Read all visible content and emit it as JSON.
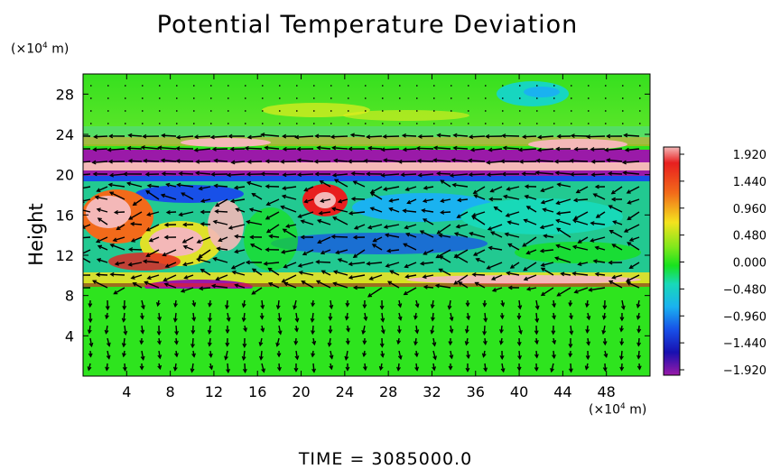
{
  "chart_data": {
    "type": "heatmap",
    "title": "Potential Temperature Deviation",
    "ylabel": "Height",
    "y_unit": "(×10⁴ m)",
    "x_unit": "(×10⁴ m)",
    "x_ticks": [
      4,
      8,
      12,
      16,
      20,
      24,
      28,
      32,
      36,
      40,
      44,
      48
    ],
    "y_ticks": [
      4,
      8,
      12,
      16,
      20,
      24,
      28
    ],
    "xlim": [
      0,
      52
    ],
    "ylim": [
      0,
      30
    ],
    "colorbar": {
      "ticks": [
        "1.920",
        "1.440",
        "0.960",
        "0.480",
        "0.000",
        "−0.480",
        "−0.960",
        "−1.440",
        "−1.920"
      ],
      "range": [
        -1.92,
        1.92
      ]
    },
    "features": {
      "tropopause_band_height": 20,
      "lower_band_height": 9,
      "vector_field": "wind vectors overlaid"
    },
    "footer": "TIME  =  3085000.0"
  }
}
